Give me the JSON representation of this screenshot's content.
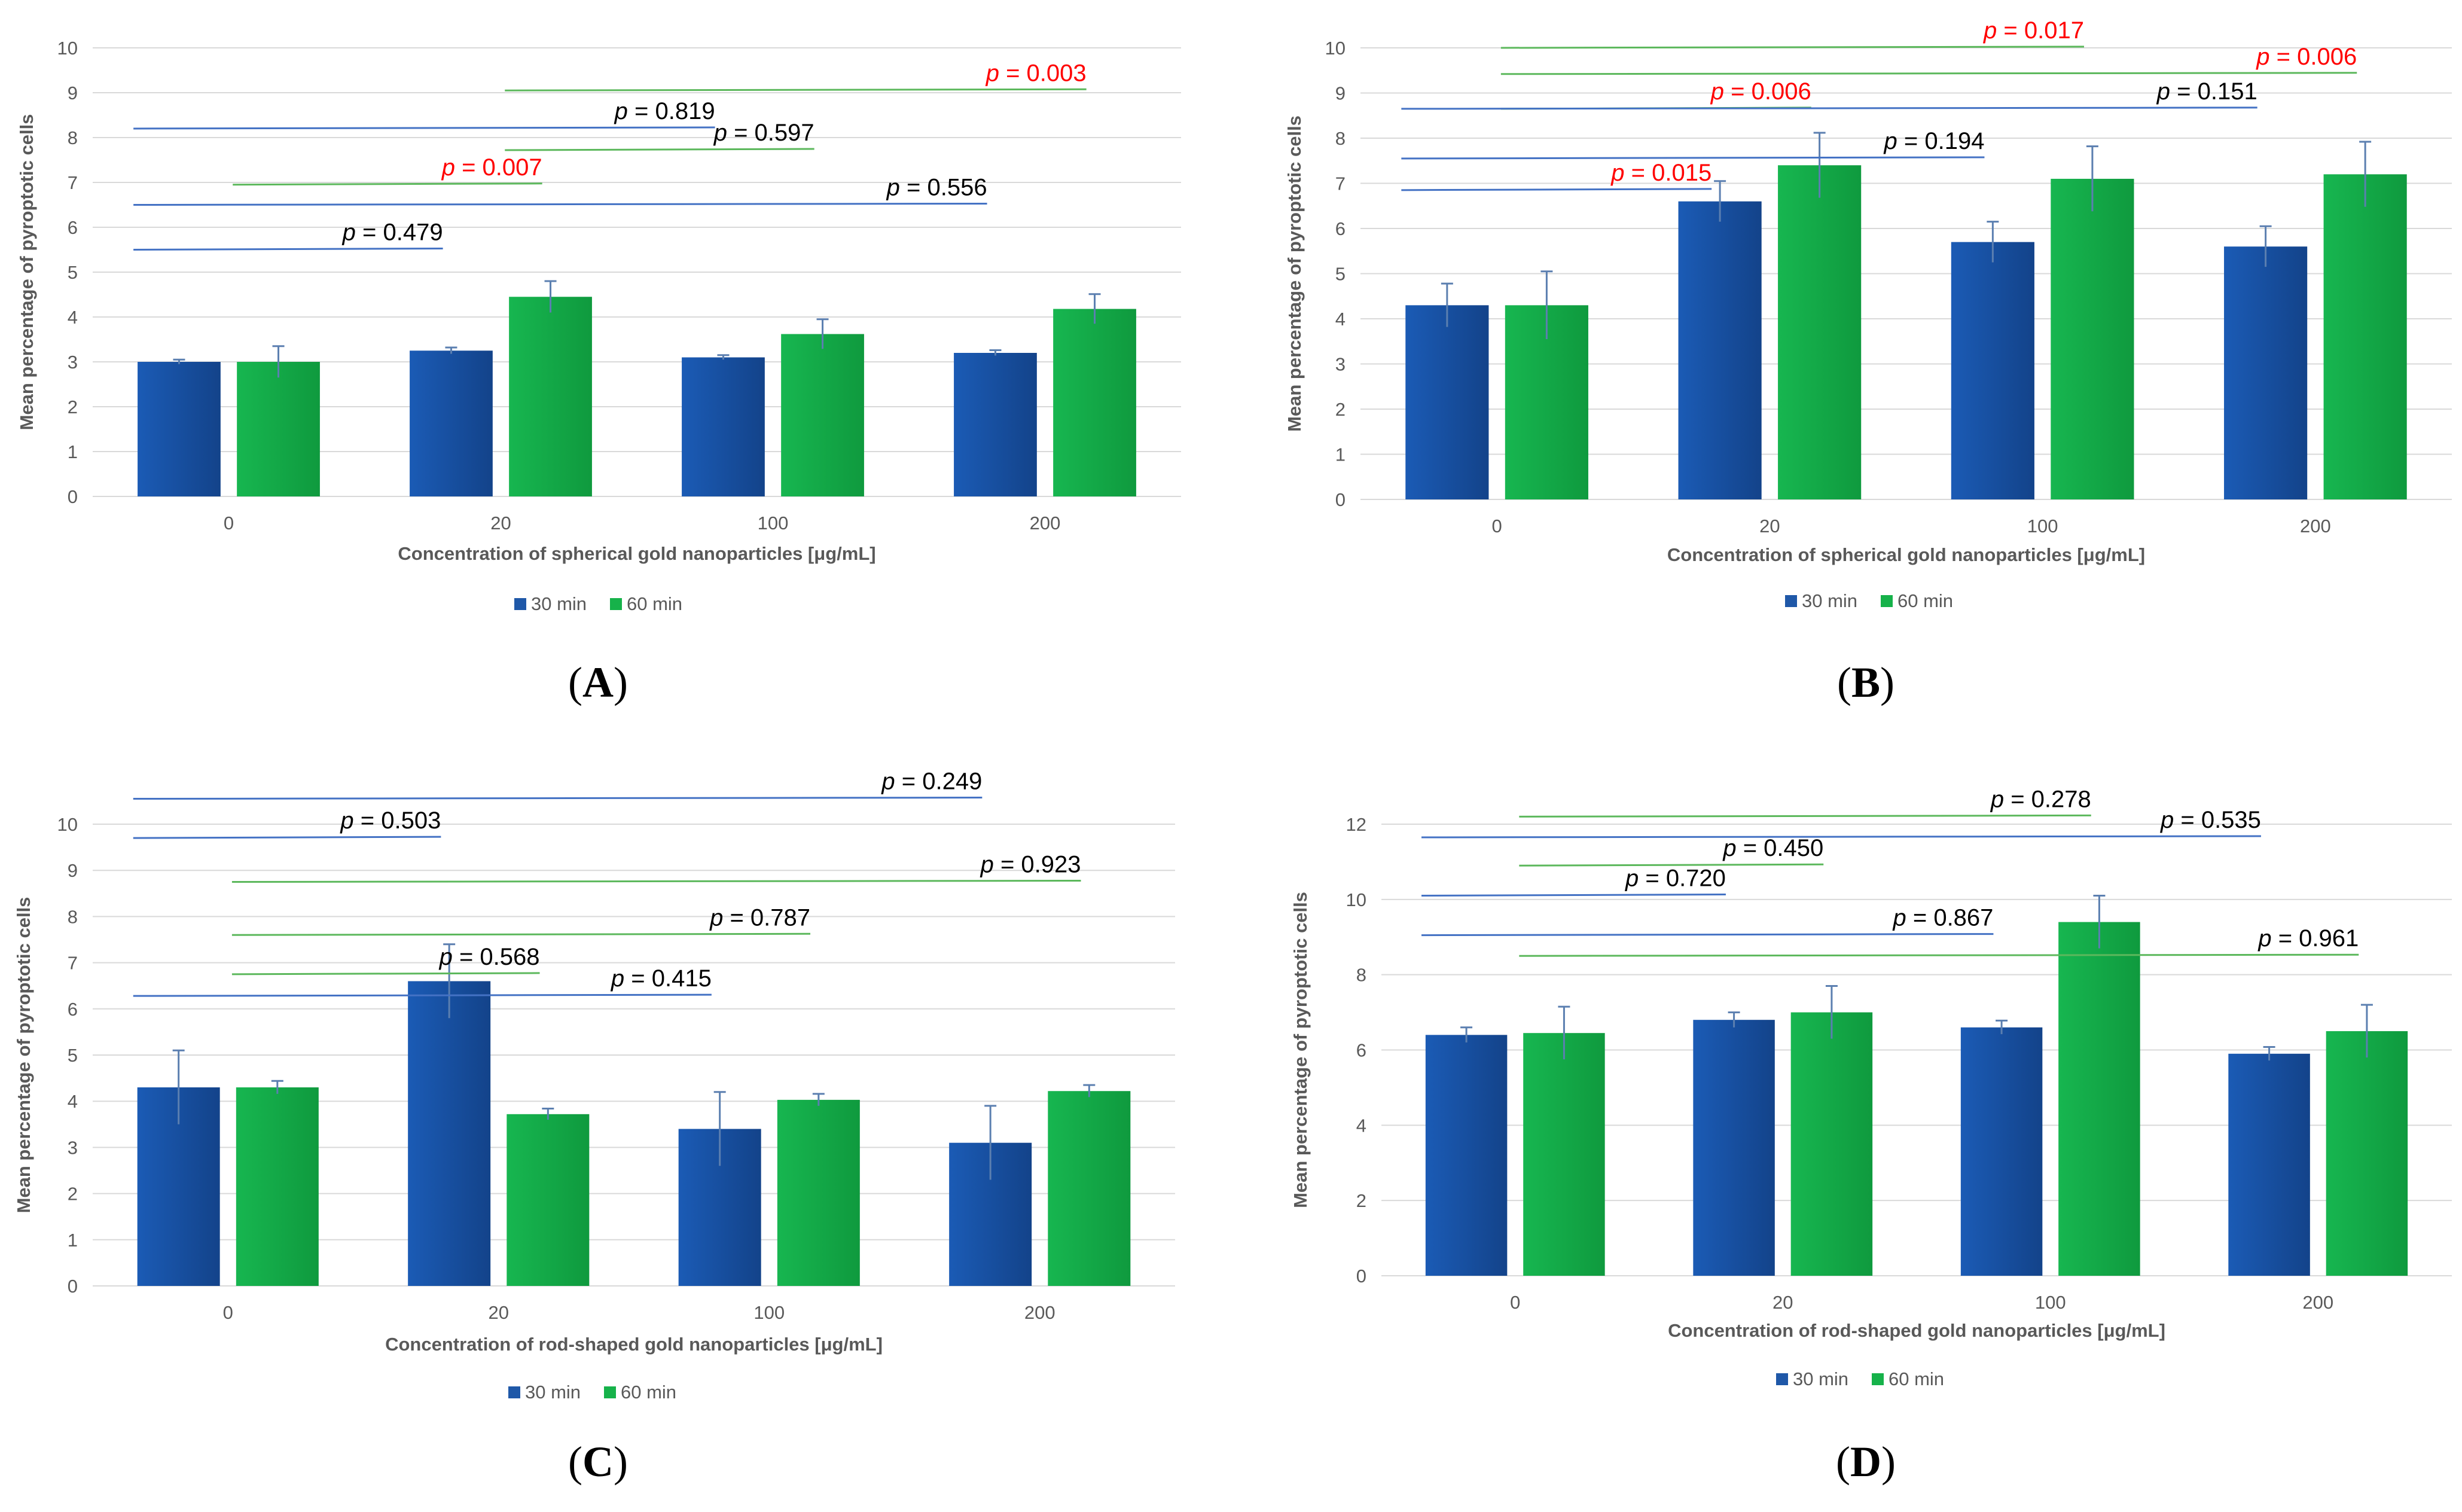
{
  "colors": {
    "blue_series": "#1f58a8",
    "green_series": "#16b24a",
    "blue_line": "#4472c4",
    "green_line": "#5cb85c",
    "p_normal": "#000000",
    "p_significant": "#ff0000",
    "gridline": "#d9d9d9",
    "tick": "#595959"
  },
  "chart_data": [
    {
      "type": "bar",
      "panel": "(A)",
      "xlabel": "Concentration of spherical gold nanoparticles [μg/mL]",
      "ylabel": "Mean percentage of pyroptotic cells",
      "categories": [
        "0",
        "20",
        "100",
        "200"
      ],
      "ylim": [
        0,
        10
      ],
      "yticks": [
        0,
        1,
        2,
        3,
        4,
        5,
        6,
        7,
        8,
        9,
        10
      ],
      "series": [
        {
          "name": "30 min",
          "values": [
            3.0,
            3.25,
            3.1,
            3.2
          ],
          "errors": [
            0.05,
            0.07,
            0.05,
            0.06
          ]
        },
        {
          "name": "60 min",
          "values": [
            3.0,
            4.45,
            3.62,
            4.18
          ],
          "errors": [
            0.35,
            0.35,
            0.33,
            0.33
          ]
        }
      ],
      "comparisons": [
        {
          "label": "p",
          "value": "= 0.003",
          "significant": true,
          "series": "60 min",
          "from": "20",
          "to": "200",
          "level": 9.05
        },
        {
          "label": "p",
          "value": "= 0.819",
          "significant": false,
          "series": "30 min",
          "from": "0",
          "to": "100",
          "level": 8.2
        },
        {
          "label": "p",
          "value": "= 0.597",
          "significant": false,
          "series": "60 min",
          "from": "20",
          "to": "100",
          "level": 7.72
        },
        {
          "label": "p",
          "value": "= 0.007",
          "significant": true,
          "series": "60 min",
          "from": "0",
          "to": "20",
          "level": 6.95
        },
        {
          "label": "p",
          "value": "= 0.556",
          "significant": false,
          "series": "30 min",
          "from": "0",
          "to": "200",
          "level": 6.5
        },
        {
          "label": "p",
          "value": "= 0.479",
          "significant": false,
          "series": "30 min",
          "from": "0",
          "to": "20",
          "level": 5.5
        }
      ]
    },
    {
      "type": "bar",
      "panel": "(B)",
      "xlabel": "Concentration of spherical gold nanoparticles [μg/mL]",
      "ylabel": "Mean percentage of pyroptotic cells",
      "categories": [
        "0",
        "20",
        "100",
        "200"
      ],
      "ylim": [
        0,
        10
      ],
      "yticks": [
        0,
        1,
        2,
        3,
        4,
        5,
        6,
        7,
        8,
        9,
        10
      ],
      "series": [
        {
          "name": "30 min",
          "values": [
            4.3,
            6.6,
            5.7,
            5.6
          ],
          "errors": [
            0.48,
            0.45,
            0.45,
            0.45
          ]
        },
        {
          "name": "60 min",
          "values": [
            4.3,
            7.4,
            7.1,
            7.2
          ],
          "errors": [
            0.75,
            0.72,
            0.72,
            0.72
          ]
        }
      ],
      "comparisons": [
        {
          "label": "p",
          "value": "= 0.017",
          "significant": true,
          "series": "60 min",
          "from": "0",
          "to": "100",
          "level": 10.0
        },
        {
          "label": "p",
          "value": "= 0.006",
          "significant": true,
          "series": "60 min",
          "from": "0",
          "to": "200",
          "level": 9.42
        },
        {
          "label": "p",
          "value": "= 0.006",
          "significant": true,
          "series": "60 min",
          "from": "0",
          "to": "20",
          "level": 8.65
        },
        {
          "label": "p",
          "value": "= 0.151",
          "significant": false,
          "series": "30 min",
          "from": "0",
          "to": "200",
          "level": 8.65
        },
        {
          "label": "p",
          "value": "= 0.194",
          "significant": false,
          "series": "30 min",
          "from": "0",
          "to": "100",
          "level": 7.55
        },
        {
          "label": "p",
          "value": "= 0.015",
          "significant": true,
          "series": "30 min",
          "from": "0",
          "to": "20",
          "level": 6.85
        }
      ]
    },
    {
      "type": "bar",
      "panel": "(C)",
      "xlabel": "Concentration of rod-shaped gold nanoparticles [μg/mL]",
      "ylabel": "Mean percentage of pyroptotic cells",
      "categories": [
        "0",
        "20",
        "100",
        "200"
      ],
      "ylim": [
        0,
        10
      ],
      "yticks": [
        0,
        1,
        2,
        3,
        4,
        5,
        6,
        7,
        8,
        9,
        10
      ],
      "series": [
        {
          "name": "30 min",
          "values": [
            4.3,
            6.6,
            3.4,
            3.1
          ],
          "errors": [
            0.8,
            0.8,
            0.8,
            0.8
          ]
        },
        {
          "name": "60 min",
          "values": [
            4.3,
            3.72,
            4.03,
            4.22
          ],
          "errors": [
            0.14,
            0.12,
            0.13,
            0.13
          ]
        }
      ],
      "comparisons": [
        {
          "label": "p",
          "value": "= 0.249",
          "significant": false,
          "series": "30 min",
          "from": "0",
          "to": "200",
          "level": 10.55
        },
        {
          "label": "p",
          "value": "= 0.503",
          "significant": false,
          "series": "30 min",
          "from": "0",
          "to": "20",
          "level": 9.7
        },
        {
          "label": "p",
          "value": "= 0.923",
          "significant": false,
          "series": "60 min",
          "from": "0",
          "to": "200",
          "level": 8.75
        },
        {
          "label": "p",
          "value": "= 0.787",
          "significant": false,
          "series": "60 min",
          "from": "0",
          "to": "100",
          "level": 7.6
        },
        {
          "label": "p",
          "value": "= 0.568",
          "significant": false,
          "series": "60 min",
          "from": "0",
          "to": "20",
          "level": 6.75
        },
        {
          "label": "p",
          "value": "= 0.415",
          "significant": false,
          "series": "30 min",
          "from": "0",
          "to": "100",
          "level": 6.28
        }
      ]
    },
    {
      "type": "bar",
      "panel": "(D)",
      "xlabel": "Concentration of rod-shaped gold nanoparticles [μg/mL]",
      "ylabel": "Mean percentage of pyroptotic cells",
      "categories": [
        "0",
        "20",
        "100",
        "200"
      ],
      "ylim": [
        0,
        12
      ],
      "yticks": [
        0,
        2,
        4,
        6,
        8,
        10,
        12
      ],
      "series": [
        {
          "name": "30 min",
          "values": [
            6.4,
            6.8,
            6.6,
            5.9
          ],
          "errors": [
            0.2,
            0.2,
            0.18,
            0.18
          ]
        },
        {
          "name": "60 min",
          "values": [
            6.45,
            7.0,
            9.4,
            6.5
          ],
          "errors": [
            0.7,
            0.7,
            0.7,
            0.7
          ]
        }
      ],
      "comparisons": [
        {
          "label": "p",
          "value": "= 0.278",
          "significant": false,
          "series": "60 min",
          "from": "0",
          "to": "100",
          "level": 12.2
        },
        {
          "label": "p",
          "value": "= 0.535",
          "significant": false,
          "series": "30 min",
          "from": "0",
          "to": "200",
          "level": 11.65
        },
        {
          "label": "p",
          "value": "= 0.450",
          "significant": false,
          "series": "60 min",
          "from": "0",
          "to": "20",
          "level": 10.9
        },
        {
          "label": "p",
          "value": "= 0.720",
          "significant": false,
          "series": "30 min",
          "from": "0",
          "to": "20",
          "level": 10.1
        },
        {
          "label": "p",
          "value": "= 0.867",
          "significant": false,
          "series": "30 min",
          "from": "0",
          "to": "100",
          "level": 9.05
        },
        {
          "label": "p",
          "value": "= 0.961",
          "significant": false,
          "series": "60 min",
          "from": "0",
          "to": "200",
          "level": 8.5
        }
      ]
    }
  ]
}
